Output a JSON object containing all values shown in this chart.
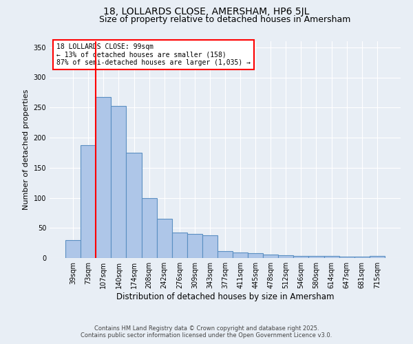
{
  "title1": "18, LOLLARDS CLOSE, AMERSHAM, HP6 5JL",
  "title2": "Size of property relative to detached houses in Amersham",
  "xlabel": "Distribution of detached houses by size in Amersham",
  "ylabel": "Number of detached properties",
  "categories": [
    "39sqm",
    "73sqm",
    "107sqm",
    "140sqm",
    "174sqm",
    "208sqm",
    "242sqm",
    "276sqm",
    "309sqm",
    "343sqm",
    "377sqm",
    "411sqm",
    "445sqm",
    "478sqm",
    "512sqm",
    "546sqm",
    "580sqm",
    "614sqm",
    "647sqm",
    "681sqm",
    "715sqm"
  ],
  "values": [
    30,
    188,
    268,
    253,
    175,
    100,
    65,
    42,
    40,
    38,
    12,
    9,
    8,
    6,
    5,
    4,
    4,
    3,
    2,
    2,
    3
  ],
  "bar_color": "#aec6e8",
  "bar_edge_color": "#5a8fc2",
  "vline_x_index": 1.5,
  "vline_color": "red",
  "annotation_text": "18 LOLLARDS CLOSE: 99sqm\n← 13% of detached houses are smaller (158)\n87% of semi-detached houses are larger (1,035) →",
  "annotation_box_color": "white",
  "annotation_box_edge_color": "red",
  "ylim": [
    0,
    360
  ],
  "yticks": [
    0,
    50,
    100,
    150,
    200,
    250,
    300,
    350
  ],
  "background_color": "#e8eef5",
  "footer_line1": "Contains HM Land Registry data © Crown copyright and database right 2025.",
  "footer_line2": "Contains public sector information licensed under the Open Government Licence v3.0.",
  "title1_fontsize": 10,
  "title2_fontsize": 9,
  "xlabel_fontsize": 8.5,
  "ylabel_fontsize": 8,
  "tick_fontsize": 7,
  "annotation_fontsize": 7,
  "footer_fontsize": 6
}
